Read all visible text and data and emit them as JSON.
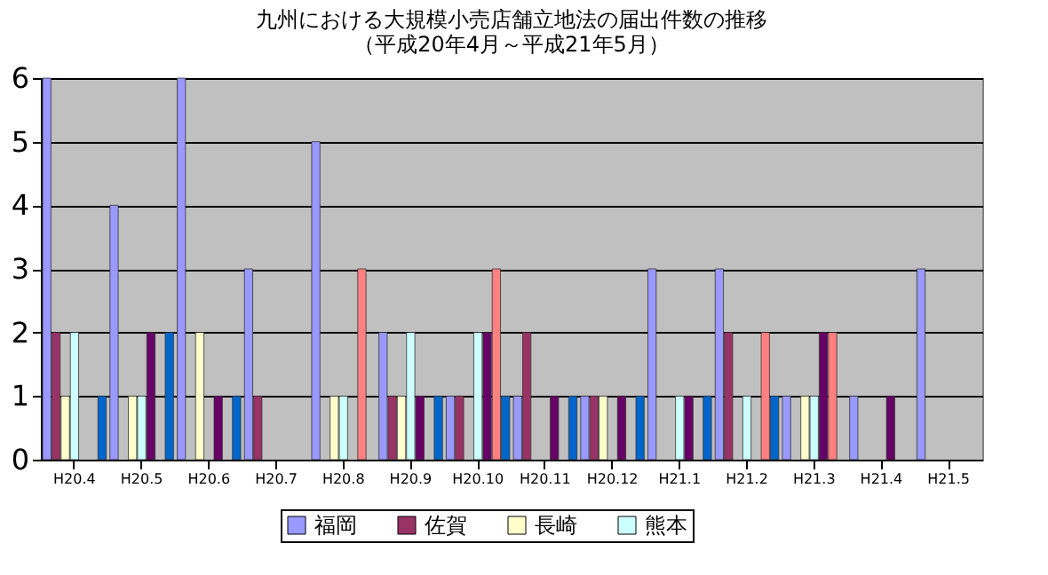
{
  "chart_data": {
    "type": "bar",
    "title": "九州における大規模小売店舗立地法の届出件数の推移",
    "subtitle": "（平成20年4月～平成21年5月）",
    "categories": [
      "H20.4",
      "H20.5",
      "H20.6",
      "H20.7",
      "H20.8",
      "H20.9",
      "H20.10",
      "H20.11",
      "H20.12",
      "H21.1",
      "H21.2",
      "H21.3",
      "H21.4",
      "H21.5"
    ],
    "series": [
      {
        "name": "福岡",
        "color": "#9999ff",
        "values": [
          6,
          4,
          6,
          3,
          5,
          2,
          1,
          1,
          1,
          3,
          3,
          1,
          1,
          3
        ]
      },
      {
        "name": "佐賀",
        "color": "#993366",
        "values": [
          2,
          0,
          0,
          1,
          0,
          1,
          1,
          2,
          1,
          0,
          2,
          0,
          0,
          0
        ]
      },
      {
        "name": "長崎",
        "color": "#ffffcc",
        "values": [
          1,
          1,
          2,
          0,
          1,
          1,
          0,
          0,
          1,
          0,
          0,
          1,
          0,
          0
        ]
      },
      {
        "name": "熊本",
        "color": "#ccffff",
        "values": [
          2,
          1,
          0,
          0,
          1,
          2,
          2,
          0,
          0,
          1,
          1,
          1,
          0,
          0
        ]
      },
      {
        "color": "#660066",
        "values": [
          0,
          2,
          1,
          0,
          0,
          1,
          2,
          1,
          1,
          1,
          0,
          2,
          1,
          0
        ]
      },
      {
        "color": "#ff8080",
        "values": [
          0,
          0,
          0,
          0,
          3,
          0,
          3,
          0,
          0,
          0,
          2,
          2,
          0,
          0
        ]
      },
      {
        "color": "#0066cc",
        "values": [
          1,
          2,
          1,
          0,
          0,
          1,
          1,
          1,
          1,
          1,
          1,
          0,
          0,
          0
        ]
      }
    ],
    "ylim": [
      0,
      6
    ],
    "yticks": [
      0,
      1,
      2,
      3,
      4,
      5,
      6
    ],
    "grid": "y",
    "legend": "bottom"
  }
}
